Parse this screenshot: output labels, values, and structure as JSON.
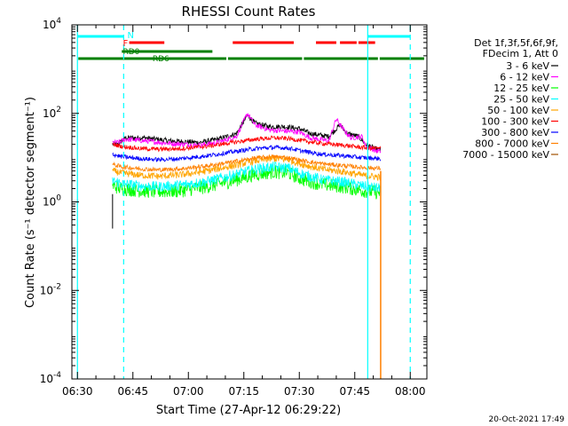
{
  "chart_data": {
    "type": "line",
    "title": "RHESSI Count Rates",
    "xlabel": "Start Time (27-Apr-12 06:29:22)",
    "ylabel": "Count Rate (s⁻¹ detector segment⁻¹)",
    "yscale": "log",
    "ylim": [
      0.0001,
      10000
    ],
    "xlim_minutes_after_0630": [
      -1.5,
      94.5
    ],
    "x_ticks": [
      {
        "label": "06:30",
        "minutes": 0
      },
      {
        "label": "06:45",
        "minutes": 15
      },
      {
        "label": "07:00",
        "minutes": 30
      },
      {
        "label": "07:15",
        "minutes": 45
      },
      {
        "label": "07:30",
        "minutes": 60
      },
      {
        "label": "07:45",
        "minutes": 75
      },
      {
        "label": "08:00",
        "minutes": 90
      }
    ],
    "y_ticks": [
      {
        "base": "10",
        "exp": "4",
        "value": 10000
      },
      {
        "base": "10",
        "exp": "2",
        "value": 100
      },
      {
        "base": "10",
        "exp": "0",
        "value": 1
      },
      {
        "base": "10",
        "exp": "-2",
        "value": 0.01
      },
      {
        "base": "10",
        "exp": "-4",
        "value": 0.0001
      }
    ],
    "legend_header": [
      "Det 1f,3f,5f,6f,9f,",
      "FDecim 1, Att 0"
    ],
    "legend_position": "right",
    "series": [
      {
        "name": "3 - 6 keV",
        "color": "#000000",
        "points": [
          [
            9.5,
            20
          ],
          [
            11,
            20
          ],
          [
            13,
            28
          ],
          [
            18,
            28
          ],
          [
            25,
            24
          ],
          [
            33,
            22
          ],
          [
            38,
            26
          ],
          [
            43,
            35
          ],
          [
            46,
            90
          ],
          [
            48,
            60
          ],
          [
            52,
            50
          ],
          [
            56,
            50
          ],
          [
            60,
            45
          ],
          [
            63,
            35
          ],
          [
            68,
            30
          ],
          [
            71,
            55
          ],
          [
            73,
            35
          ],
          [
            76,
            30
          ],
          [
            78,
            20
          ],
          [
            81,
            15
          ],
          [
            82,
            15
          ]
        ]
      },
      {
        "name": "6 - 12 keV",
        "color": "#ff00ff",
        "points": [
          [
            9.5,
            22
          ],
          [
            11,
            22
          ],
          [
            13,
            26
          ],
          [
            18,
            24
          ],
          [
            25,
            21
          ],
          [
            33,
            19
          ],
          [
            38,
            22
          ],
          [
            43,
            30
          ],
          [
            46,
            100
          ],
          [
            48,
            55
          ],
          [
            52,
            42
          ],
          [
            56,
            40
          ],
          [
            60,
            38
          ],
          [
            63,
            28
          ],
          [
            68,
            24
          ],
          [
            70,
            75
          ],
          [
            72,
            42
          ],
          [
            74,
            28
          ],
          [
            77,
            30
          ],
          [
            78,
            18
          ],
          [
            81,
            14
          ],
          [
            82,
            14
          ]
        ]
      },
      {
        "name": "12 - 25 keV",
        "color": "#00ff00",
        "points": [
          [
            9.5,
            2.3
          ],
          [
            12,
            2.0
          ],
          [
            17,
            1.8
          ],
          [
            22,
            1.7
          ],
          [
            28,
            1.8
          ],
          [
            35,
            2.2
          ],
          [
            42,
            3.0
          ],
          [
            48,
            4.2
          ],
          [
            53,
            4.8
          ],
          [
            57,
            4.5
          ],
          [
            61,
            3.2
          ],
          [
            66,
            2.5
          ],
          [
            72,
            2.2
          ],
          [
            77,
            1.8
          ],
          [
            82,
            1.6
          ]
        ]
      },
      {
        "name": "25 - 50 keV",
        "color": "#00ffff",
        "points": [
          [
            9.5,
            3.0
          ],
          [
            12,
            2.6
          ],
          [
            17,
            2.3
          ],
          [
            22,
            2.2
          ],
          [
            28,
            2.4
          ],
          [
            35,
            2.9
          ],
          [
            42,
            4.0
          ],
          [
            48,
            5.5
          ],
          [
            53,
            6.2
          ],
          [
            57,
            5.8
          ],
          [
            61,
            4.2
          ],
          [
            66,
            3.2
          ],
          [
            72,
            2.8
          ],
          [
            77,
            2.3
          ],
          [
            82,
            2.0
          ]
        ]
      },
      {
        "name": "50 - 100 keV",
        "color": "#ffa500",
        "points": [
          [
            9.5,
            5.0
          ],
          [
            12,
            4.5
          ],
          [
            17,
            4.0
          ],
          [
            22,
            3.8
          ],
          [
            28,
            4.1
          ],
          [
            35,
            5.0
          ],
          [
            42,
            6.5
          ],
          [
            48,
            8.5
          ],
          [
            53,
            9.5
          ],
          [
            57,
            9.0
          ],
          [
            61,
            7.0
          ],
          [
            66,
            5.5
          ],
          [
            72,
            4.8
          ],
          [
            77,
            4.0
          ],
          [
            82,
            3.6
          ]
        ]
      },
      {
        "name": "100 - 300 keV",
        "color": "#ff0000",
        "points": [
          [
            9.5,
            20
          ],
          [
            12,
            18
          ],
          [
            17,
            16
          ],
          [
            22,
            15.5
          ],
          [
            28,
            16
          ],
          [
            35,
            18
          ],
          [
            42,
            22
          ],
          [
            48,
            26
          ],
          [
            53,
            28
          ],
          [
            57,
            27
          ],
          [
            61,
            24
          ],
          [
            66,
            21
          ],
          [
            72,
            19
          ],
          [
            77,
            17
          ],
          [
            82,
            16
          ]
        ]
      },
      {
        "name": "300 - 800 keV",
        "color": "#0000ff",
        "points": [
          [
            9.5,
            12
          ],
          [
            12,
            10.5
          ],
          [
            17,
            9.5
          ],
          [
            22,
            9.0
          ],
          [
            28,
            9.5
          ],
          [
            35,
            11
          ],
          [
            42,
            13.5
          ],
          [
            48,
            16
          ],
          [
            53,
            17
          ],
          [
            57,
            16.5
          ],
          [
            61,
            14
          ],
          [
            66,
            12
          ],
          [
            72,
            11
          ],
          [
            77,
            10
          ],
          [
            82,
            9.5
          ]
        ]
      },
      {
        "name": "800 - 7000 keV",
        "color": "#ff8000",
        "points": [
          [
            9.5,
            7.0
          ],
          [
            12,
            6.2
          ],
          [
            17,
            5.6
          ],
          [
            22,
            5.3
          ],
          [
            28,
            5.6
          ],
          [
            35,
            6.5
          ],
          [
            42,
            8.0
          ],
          [
            48,
            9.8
          ],
          [
            53,
            10.5
          ],
          [
            57,
            10
          ],
          [
            61,
            8.5
          ],
          [
            66,
            7.3
          ],
          [
            72,
            6.6
          ],
          [
            77,
            6.0
          ],
          [
            82,
            5.7
          ]
        ]
      },
      {
        "name": "7000 - 15000 keV",
        "color": "#a05000",
        "points": []
      }
    ],
    "annotations": {
      "cyan_bar_label": "N",
      "red_bar_label": "F",
      "green_bar_label_1": "RD0",
      "green_bar_label_2": "RD6",
      "cyan_bars_minutes": [
        [
          0,
          12.5
        ],
        [
          78.5,
          90
        ]
      ],
      "red_bars_minutes": [
        [
          14,
          23.5
        ],
        [
          42,
          58.5
        ],
        [
          64.5,
          70
        ],
        [
          71,
          75.5
        ],
        [
          76,
          80.5
        ]
      ],
      "green_bars_minutes": [
        [
          0,
          40.5
        ],
        [
          40.5,
          61
        ],
        [
          61,
          81.5
        ],
        [
          81.5,
          94
        ]
      ],
      "green_upper_bar_minutes": [
        [
          12,
          36.5
        ]
      ],
      "cyan_vlines_solid": [
        0,
        78.5
      ],
      "cyan_vlines_dashed": [
        12.5,
        90
      ],
      "orange_vline_minutes": 82
    }
  },
  "footer": {
    "date_stamp": "20-Oct-2021 17:49"
  },
  "colors": {
    "axis": "#000000",
    "cyan": "#00ffff",
    "red": "#ff0000",
    "green": "#008000",
    "orange": "#ff8000"
  }
}
